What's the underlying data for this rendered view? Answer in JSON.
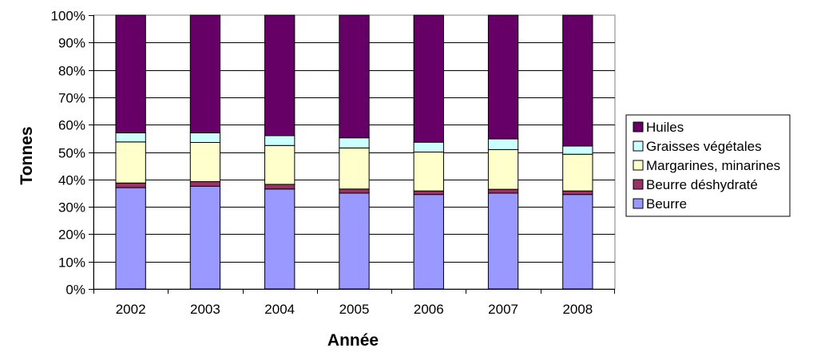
{
  "chart_data": {
    "type": "bar",
    "stacked": true,
    "percent_stacked": true,
    "title": "",
    "xlabel": "Année",
    "ylabel": "Tonnes",
    "categories": [
      "2002",
      "2003",
      "2004",
      "2005",
      "2006",
      "2007",
      "2008"
    ],
    "ylim": [
      0,
      100
    ],
    "yticks": [
      "0%",
      "10%",
      "20%",
      "30%",
      "40%",
      "50%",
      "60%",
      "70%",
      "80%",
      "90%",
      "100%"
    ],
    "grid": true,
    "legend_position": "right",
    "series": [
      {
        "name": "Beurre",
        "color": "#9999ff",
        "values": [
          37,
          37.5,
          36.5,
          35,
          34.5,
          35,
          34.5
        ]
      },
      {
        "name": "Beurre déshydraté",
        "color": "#993366",
        "values": [
          1.7,
          1.7,
          1.7,
          1.5,
          1.3,
          1.4,
          1.3
        ]
      },
      {
        "name": "Margarines, minarines",
        "color": "#ffffcc",
        "values": [
          15,
          14.3,
          14.2,
          15,
          14.2,
          14.5,
          13.4
        ]
      },
      {
        "name": "Graisses végétales",
        "color": "#ccffff",
        "values": [
          3.3,
          3.5,
          3.6,
          3.7,
          3.6,
          3.9,
          3
        ]
      },
      {
        "name": "Huiles",
        "color": "#660066",
        "values": [
          43,
          43,
          44,
          44.8,
          46.4,
          45.2,
          47.8
        ]
      }
    ]
  }
}
